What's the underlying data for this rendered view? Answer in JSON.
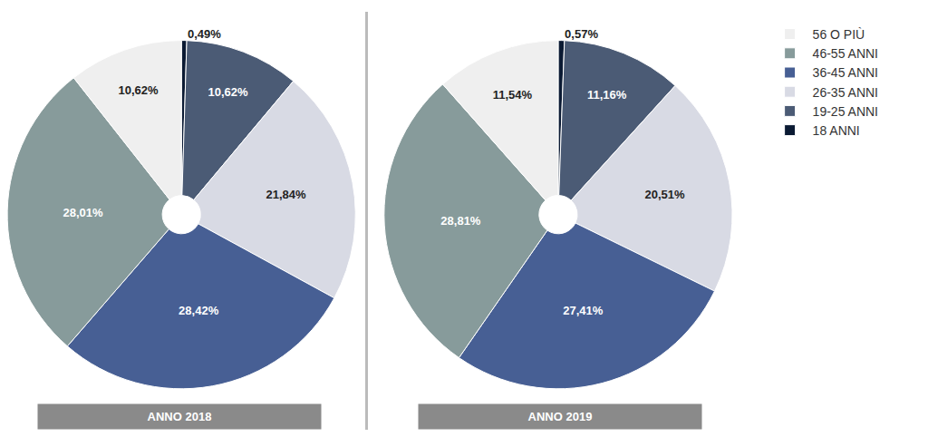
{
  "chart_data": [
    {
      "type": "pie",
      "title": "ANNO 2018",
      "categories": [
        "18 ANNI",
        "19-25 ANNI",
        "26-35 ANNI",
        "36-45 ANNI",
        "46-55 ANNI",
        "56 O PIÙ"
      ],
      "values": [
        0.49,
        10.62,
        21.84,
        28.42,
        28.01,
        10.62
      ],
      "value_labels": [
        "0,49%",
        "10,62%",
        "21,84%",
        "28,42%",
        "28,01%",
        "10,62%"
      ],
      "colors": [
        "#0b1a33",
        "#4b5b75",
        "#d8dae4",
        "#475f94",
        "#879b9b",
        "#efefef"
      ],
      "data_labels": true,
      "legend": "right"
    },
    {
      "type": "pie",
      "title": "ANNO 2019",
      "categories": [
        "18 ANNI",
        "19-25 ANNI",
        "26-35 ANNI",
        "36-45 ANNI",
        "46-55 ANNI",
        "56 O PIÙ"
      ],
      "values": [
        0.57,
        11.16,
        20.51,
        27.41,
        28.81,
        11.54
      ],
      "value_labels": [
        "0,57%",
        "11,16%",
        "20,51%",
        "27,41%",
        "28,81%",
        "11,54%"
      ],
      "colors": [
        "#0b1a33",
        "#4b5b75",
        "#d8dae4",
        "#475f94",
        "#879b9b",
        "#efefef"
      ],
      "data_labels": true,
      "legend": "right"
    }
  ]
}
